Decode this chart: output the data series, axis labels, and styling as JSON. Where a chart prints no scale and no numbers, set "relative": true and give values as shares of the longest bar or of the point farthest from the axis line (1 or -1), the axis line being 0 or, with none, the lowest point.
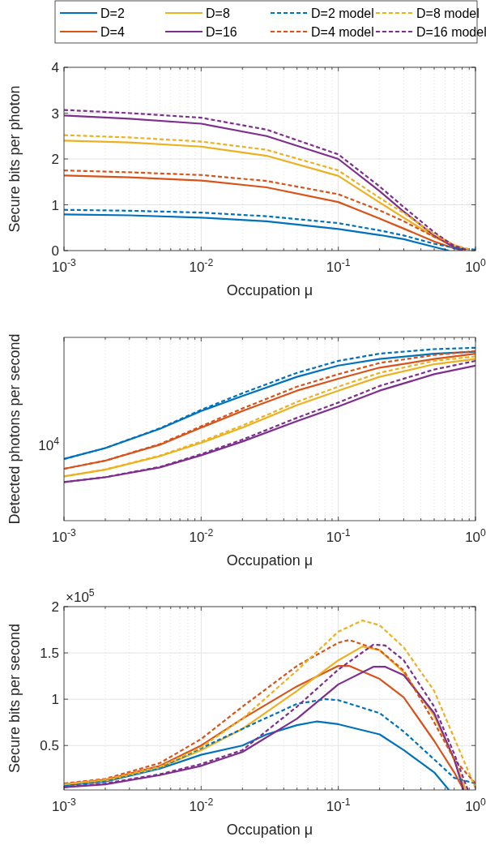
{
  "chart_data": [
    {
      "type": "line",
      "xlabel": "Occupation μ",
      "ylabel": "Secure bits per photon",
      "log": "x",
      "grid": true,
      "legend": "top",
      "xlim": [
        0.001,
        1
      ],
      "ylim": [
        0,
        4
      ],
      "xticks": [
        {
          "value": 0.001,
          "label": "10$^{-3}$"
        },
        {
          "value": 0.002,
          "label": null
        },
        {
          "value": 0.003,
          "label": null
        },
        {
          "value": 0.004,
          "label": null
        },
        {
          "value": 0.005,
          "label": null
        },
        {
          "value": 0.006,
          "label": null
        },
        {
          "value": 0.007,
          "label": null
        },
        {
          "value": 0.008,
          "label": null
        },
        {
          "value": 0.009,
          "label": null
        },
        {
          "value": 0.01,
          "label": "10$^{-2}$"
        },
        {
          "value": 0.02,
          "label": null
        },
        {
          "value": 0.03,
          "label": null
        },
        {
          "value": 0.04,
          "label": null
        },
        {
          "value": 0.05,
          "label": null
        },
        {
          "value": 0.06,
          "label": null
        },
        {
          "value": 0.07,
          "label": null
        },
        {
          "value": 0.08,
          "label": null
        },
        {
          "value": 0.09,
          "label": null
        },
        {
          "value": 0.1,
          "label": "10$^{-1}$"
        },
        {
          "value": 0.2,
          "label": null
        },
        {
          "value": 0.3,
          "label": null
        },
        {
          "value": 0.4,
          "label": null
        },
        {
          "value": 0.5,
          "label": null
        },
        {
          "value": 0.6,
          "label": null
        },
        {
          "value": 0.7,
          "label": null
        },
        {
          "value": 0.8,
          "label": null
        },
        {
          "value": 0.9,
          "label": null
        },
        {
          "value": 1,
          "label": "10$^{0}$"
        }
      ],
      "yticks": [
        0,
        1,
        2,
        3,
        4
      ],
      "series": [
        {
          "name": "D=2",
          "color": "#0072bd",
          "line_style": "solid",
          "x": [
            0.001,
            0.003,
            0.01,
            0.03,
            0.1,
            0.2,
            0.3,
            0.5,
            0.64
          ],
          "values": [
            0.79,
            0.77,
            0.72,
            0.64,
            0.47,
            0.34,
            0.25,
            0.08,
            0
          ]
        },
        {
          "name": "D=4",
          "color": "#d95319",
          "line_style": "solid",
          "x": [
            0.001,
            0.003,
            0.01,
            0.03,
            0.1,
            0.2,
            0.3,
            0.5,
            0.7,
            0.8
          ],
          "values": [
            1.64,
            1.6,
            1.53,
            1.38,
            1.06,
            0.7,
            0.48,
            0.2,
            0.05,
            0
          ]
        },
        {
          "name": "D=8",
          "color": "#edb120",
          "line_style": "solid",
          "x": [
            0.001,
            0.003,
            0.01,
            0.03,
            0.1,
            0.2,
            0.3,
            0.5,
            0.7,
            0.85
          ],
          "values": [
            2.4,
            2.36,
            2.27,
            2.07,
            1.63,
            1.05,
            0.72,
            0.3,
            0.08,
            0
          ]
        },
        {
          "name": "D=16",
          "color": "#7e2f8e",
          "line_style": "solid",
          "x": [
            0.001,
            0.003,
            0.01,
            0.03,
            0.1,
            0.2,
            0.3,
            0.5,
            0.7,
            0.8
          ],
          "values": [
            2.95,
            2.88,
            2.77,
            2.5,
            2.0,
            1.3,
            0.85,
            0.33,
            0.07,
            0
          ]
        },
        {
          "name": "D=2 model",
          "color": "#0072bd",
          "line_style": "dashed",
          "x": [
            0.001,
            0.003,
            0.01,
            0.03,
            0.1,
            0.2,
            0.3,
            0.5,
            0.7,
            1
          ],
          "values": [
            0.89,
            0.87,
            0.83,
            0.75,
            0.6,
            0.44,
            0.33,
            0.15,
            0.06,
            0.02
          ]
        },
        {
          "name": "D=4 model",
          "color": "#d95319",
          "line_style": "dashed",
          "x": [
            0.001,
            0.003,
            0.01,
            0.03,
            0.1,
            0.2,
            0.3,
            0.5,
            0.7,
            0.85
          ],
          "values": [
            1.75,
            1.71,
            1.65,
            1.52,
            1.23,
            0.88,
            0.64,
            0.3,
            0.12,
            0.03
          ]
        },
        {
          "name": "D=8 model",
          "color": "#edb120",
          "line_style": "dashed",
          "x": [
            0.001,
            0.003,
            0.01,
            0.03,
            0.1,
            0.2,
            0.3,
            0.5,
            0.7,
            0.9
          ],
          "values": [
            2.52,
            2.47,
            2.38,
            2.2,
            1.75,
            1.15,
            0.82,
            0.36,
            0.12,
            0.03
          ]
        },
        {
          "name": "D=16 model",
          "color": "#7e2f8e",
          "line_style": "dashed",
          "x": [
            0.001,
            0.003,
            0.01,
            0.03,
            0.1,
            0.2,
            0.3,
            0.5,
            0.7,
            0.85
          ],
          "values": [
            3.07,
            3.0,
            2.9,
            2.64,
            2.1,
            1.4,
            0.95,
            0.4,
            0.1,
            0.02
          ]
        }
      ]
    },
    {
      "type": "line",
      "xlabel": "Occupation μ",
      "ylabel": "Detected photons per second",
      "log": "x",
      "grid": true,
      "relative": true,
      "xlim": [
        0.001,
        1
      ],
      "annotations": [
        "10$^{4}$"
      ],
      "xticks": [
        {
          "value": 0.001,
          "label": "10$^{-3}$"
        },
        {
          "value": 0.002,
          "label": null
        },
        {
          "value": 0.003,
          "label": null
        },
        {
          "value": 0.004,
          "label": null
        },
        {
          "value": 0.005,
          "label": null
        },
        {
          "value": 0.006,
          "label": null
        },
        {
          "value": 0.007,
          "label": null
        },
        {
          "value": 0.008,
          "label": null
        },
        {
          "value": 0.009,
          "label": null
        },
        {
          "value": 0.01,
          "label": "10$^{-2}$"
        },
        {
          "value": 0.02,
          "label": null
        },
        {
          "value": 0.03,
          "label": null
        },
        {
          "value": 0.04,
          "label": null
        },
        {
          "value": 0.05,
          "label": null
        },
        {
          "value": 0.06,
          "label": null
        },
        {
          "value": 0.07,
          "label": null
        },
        {
          "value": 0.08,
          "label": null
        },
        {
          "value": 0.09,
          "label": null
        },
        {
          "value": 0.1,
          "label": "10$^{-1}$"
        },
        {
          "value": 0.2,
          "label": null
        },
        {
          "value": 0.3,
          "label": null
        },
        {
          "value": 0.4,
          "label": null
        },
        {
          "value": 0.5,
          "label": null
        },
        {
          "value": 0.6,
          "label": null
        },
        {
          "value": 0.7,
          "label": null
        },
        {
          "value": 0.8,
          "label": null
        },
        {
          "value": 0.9,
          "label": null
        },
        {
          "value": 1,
          "label": "10$^{0}$"
        }
      ],
      "series": [
        {
          "color": "#0072bd",
          "line_style": "solid",
          "x": [
            0.001,
            0.002,
            0.005,
            0.01,
            0.02,
            0.05,
            0.1,
            0.2,
            0.5,
            1
          ],
          "values": [
            0.357,
            0.42,
            0.531,
            0.634,
            0.721,
            0.832,
            0.897,
            0.935,
            0.966,
            0.977
          ]
        },
        {
          "color": "#d95319",
          "line_style": "solid",
          "x": [
            0.001,
            0.002,
            0.005,
            0.01,
            0.02,
            0.05,
            0.1,
            0.2,
            0.5,
            1
          ],
          "values": [
            0.3,
            0.347,
            0.439,
            0.538,
            0.634,
            0.752,
            0.821,
            0.885,
            0.935,
            0.966
          ]
        },
        {
          "color": "#edb120",
          "line_style": "solid",
          "x": [
            0.001,
            0.002,
            0.005,
            0.01,
            0.02,
            0.05,
            0.1,
            0.2,
            0.5,
            1
          ],
          "values": [
            0.256,
            0.295,
            0.373,
            0.45,
            0.538,
            0.668,
            0.752,
            0.832,
            0.905,
            0.935
          ]
        },
        {
          "color": "#7e2f8e",
          "line_style": "solid",
          "x": [
            0.001,
            0.002,
            0.005,
            0.01,
            0.02,
            0.05,
            0.1,
            0.2,
            0.5,
            1
          ],
          "values": [
            0.223,
            0.251,
            0.308,
            0.378,
            0.458,
            0.576,
            0.66,
            0.752,
            0.847,
            0.897
          ]
        },
        {
          "color": "#0072bd",
          "line_style": "dashed",
          "x": [
            0.001,
            0.002,
            0.005,
            0.01,
            0.02,
            0.05,
            0.1,
            0.2,
            0.5,
            1
          ],
          "values": [
            0.357,
            0.42,
            0.534,
            0.641,
            0.737,
            0.855,
            0.924,
            0.966,
            0.992,
            1
          ]
        },
        {
          "color": "#d95319",
          "line_style": "dashed",
          "x": [
            0.001,
            0.002,
            0.005,
            0.01,
            0.02,
            0.05,
            0.1,
            0.2,
            0.5,
            1
          ],
          "values": [
            0.3,
            0.347,
            0.443,
            0.546,
            0.649,
            0.775,
            0.847,
            0.912,
            0.958,
            0.981
          ]
        },
        {
          "color": "#edb120",
          "line_style": "dashed",
          "x": [
            0.001,
            0.002,
            0.005,
            0.01,
            0.02,
            0.05,
            0.1,
            0.2,
            0.5,
            1
          ],
          "values": [
            0.256,
            0.296,
            0.376,
            0.458,
            0.55,
            0.687,
            0.775,
            0.855,
            0.924,
            0.95
          ]
        },
        {
          "color": "#7e2f8e",
          "line_style": "dashed",
          "x": [
            0.001,
            0.002,
            0.005,
            0.01,
            0.02,
            0.05,
            0.1,
            0.2,
            0.5,
            1
          ],
          "values": [
            0.223,
            0.252,
            0.311,
            0.385,
            0.469,
            0.595,
            0.683,
            0.779,
            0.874,
            0.924
          ]
        }
      ]
    },
    {
      "type": "line",
      "xlabel": "Occupation μ",
      "ylabel": "Secure bits per second",
      "log": "x",
      "grid": true,
      "xlim": [
        0.001,
        1
      ],
      "ylim": [
        0.02,
        2
      ],
      "annotations": [
        "×10$^{5}$"
      ],
      "xticks": [
        {
          "value": 0.001,
          "label": "10$^{-3}$"
        },
        {
          "value": 0.002,
          "label": null
        },
        {
          "value": 0.003,
          "label": null
        },
        {
          "value": 0.004,
          "label": null
        },
        {
          "value": 0.005,
          "label": null
        },
        {
          "value": 0.006,
          "label": null
        },
        {
          "value": 0.007,
          "label": null
        },
        {
          "value": 0.008,
          "label": null
        },
        {
          "value": 0.009,
          "label": null
        },
        {
          "value": 0.01,
          "label": "10$^{-2}$"
        },
        {
          "value": 0.02,
          "label": null
        },
        {
          "value": 0.03,
          "label": null
        },
        {
          "value": 0.04,
          "label": null
        },
        {
          "value": 0.05,
          "label": null
        },
        {
          "value": 0.06,
          "label": null
        },
        {
          "value": 0.07,
          "label": null
        },
        {
          "value": 0.08,
          "label": null
        },
        {
          "value": 0.09,
          "label": null
        },
        {
          "value": 0.1,
          "label": "10$^{-1}$"
        },
        {
          "value": 0.2,
          "label": null
        },
        {
          "value": 0.3,
          "label": null
        },
        {
          "value": 0.4,
          "label": null
        },
        {
          "value": 0.5,
          "label": null
        },
        {
          "value": 0.6,
          "label": null
        },
        {
          "value": 0.7,
          "label": null
        },
        {
          "value": 0.8,
          "label": null
        },
        {
          "value": 0.9,
          "label": null
        },
        {
          "value": 1,
          "label": "10$^{0}$"
        }
      ],
      "yticks": [
        0.5,
        1,
        1.5,
        2
      ],
      "series": [
        {
          "color": "#0072bd",
          "line_style": "solid",
          "x": [
            0.001,
            0.002,
            0.005,
            0.01,
            0.02,
            0.03,
            0.05,
            0.07,
            0.1,
            0.2,
            0.3,
            0.5,
            0.64
          ],
          "values": [
            0.07,
            0.11,
            0.25,
            0.4,
            0.5,
            0.62,
            0.72,
            0.76,
            0.73,
            0.62,
            0.45,
            0.21,
            0.02
          ]
        },
        {
          "color": "#d95319",
          "line_style": "solid",
          "x": [
            0.001,
            0.002,
            0.005,
            0.01,
            0.02,
            0.05,
            0.1,
            0.12,
            0.2,
            0.3,
            0.5,
            0.7,
            0.82
          ],
          "values": [
            0.08,
            0.13,
            0.28,
            0.5,
            0.79,
            1.14,
            1.36,
            1.36,
            1.22,
            1.02,
            0.55,
            0.21,
            0.02
          ]
        },
        {
          "color": "#edb120",
          "line_style": "solid",
          "x": [
            0.001,
            0.002,
            0.005,
            0.01,
            0.02,
            0.05,
            0.1,
            0.15,
            0.2,
            0.3,
            0.5,
            0.7,
            0.85
          ],
          "values": [
            0.08,
            0.12,
            0.26,
            0.45,
            0.68,
            1.09,
            1.42,
            1.57,
            1.53,
            1.29,
            0.82,
            0.35,
            0.02
          ]
        },
        {
          "color": "#7e2f8e",
          "line_style": "solid",
          "x": [
            0.001,
            0.002,
            0.005,
            0.01,
            0.02,
            0.05,
            0.1,
            0.18,
            0.22,
            0.3,
            0.5,
            0.7,
            0.82
          ],
          "values": [
            0.05,
            0.08,
            0.18,
            0.28,
            0.43,
            0.79,
            1.16,
            1.35,
            1.35,
            1.26,
            0.85,
            0.35,
            0.02
          ]
        },
        {
          "color": "#0072bd",
          "line_style": "dashed",
          "x": [
            0.001,
            0.002,
            0.005,
            0.01,
            0.02,
            0.05,
            0.08,
            0.1,
            0.2,
            0.3,
            0.5,
            0.7,
            1
          ],
          "values": [
            0.07,
            0.12,
            0.26,
            0.47,
            0.68,
            0.95,
            1.0,
            0.99,
            0.85,
            0.65,
            0.35,
            0.15,
            0.09
          ]
        },
        {
          "color": "#d95319",
          "line_style": "dashed",
          "x": [
            0.001,
            0.002,
            0.005,
            0.01,
            0.02,
            0.05,
            0.1,
            0.12,
            0.2,
            0.3,
            0.5,
            0.7,
            1
          ],
          "values": [
            0.09,
            0.14,
            0.31,
            0.57,
            0.92,
            1.36,
            1.61,
            1.64,
            1.53,
            1.31,
            0.75,
            0.35,
            0.09
          ]
        },
        {
          "color": "#edb120",
          "line_style": "dashed",
          "x": [
            0.001,
            0.002,
            0.005,
            0.01,
            0.02,
            0.05,
            0.1,
            0.15,
            0.2,
            0.3,
            0.5,
            0.7,
            1
          ],
          "values": [
            0.08,
            0.13,
            0.27,
            0.48,
            0.79,
            1.31,
            1.73,
            1.85,
            1.8,
            1.56,
            1.09,
            0.58,
            0.04
          ]
        },
        {
          "color": "#7e2f8e",
          "line_style": "dashed",
          "x": [
            0.001,
            0.002,
            0.005,
            0.01,
            0.02,
            0.05,
            0.1,
            0.18,
            0.22,
            0.3,
            0.5,
            0.7,
            0.88
          ],
          "values": [
            0.05,
            0.09,
            0.19,
            0.3,
            0.45,
            0.92,
            1.32,
            1.59,
            1.58,
            1.42,
            0.92,
            0.41,
            0.02
          ]
        }
      ]
    }
  ]
}
